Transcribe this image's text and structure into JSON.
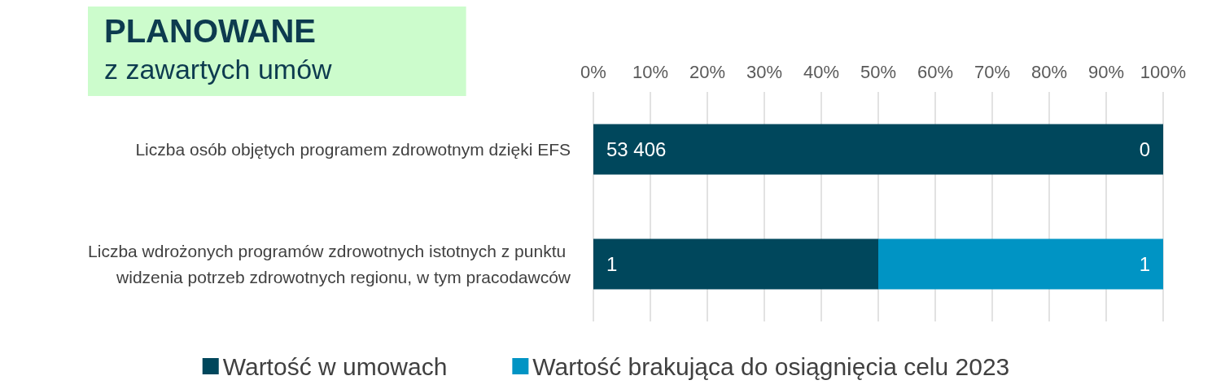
{
  "chart_data": {
    "type": "bar",
    "orientation": "horizontal",
    "stacked": true,
    "title": "PLANOWANE",
    "subtitle": "z zawartych umów",
    "categories": [
      "Liczba osób objętych programem zdrowotnym dzięki EFS",
      "Liczba wdrożonych programów zdrowotnych istotnych z punktu widzenia potrzeb zdrowotnych regionu, w tym pracodawców"
    ],
    "series": [
      {
        "name": "Wartość w umowach",
        "color": "#00475c",
        "values": [
          100,
          50
        ]
      },
      {
        "name": "Wartość brakująca do osiągnięcia celu 2023",
        "color": "#0094c4",
        "values": [
          0,
          50
        ]
      }
    ],
    "annotations": [
      "53 406",
      "0",
      "1",
      "1"
    ],
    "xlim": [
      0,
      100
    ],
    "xticks": [
      {
        "value": 0,
        "label": "0%"
      },
      {
        "value": 10,
        "label": "10%"
      },
      {
        "value": 20,
        "label": "20%"
      },
      {
        "value": 30,
        "label": "30%"
      },
      {
        "value": 40,
        "label": "40%"
      },
      {
        "value": 50,
        "label": "50%"
      },
      {
        "value": 60,
        "label": "60%"
      },
      {
        "value": 70,
        "label": "70%"
      },
      {
        "value": 80,
        "label": "80%"
      },
      {
        "value": 90,
        "label": "90%"
      },
      {
        "value": 100,
        "label": "100%"
      }
    ],
    "grid": "x",
    "legend": "bottom"
  }
}
